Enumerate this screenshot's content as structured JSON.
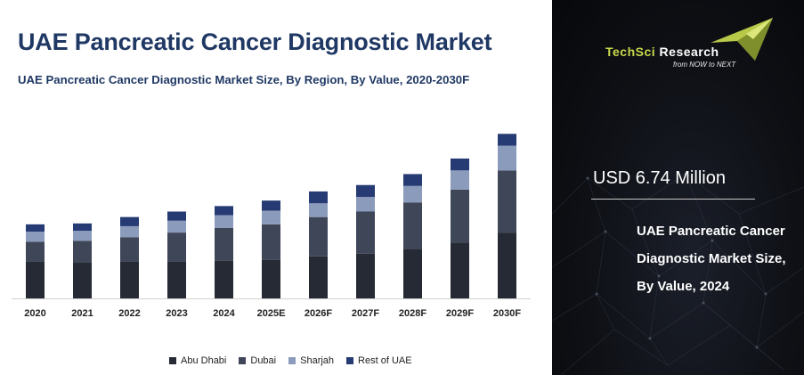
{
  "header": {
    "title": "UAE Pancreatic Cancer Diagnostic Market",
    "subtitle": "UAE Pancreatic Cancer Diagnostic Market Size, By Region, By Value, 2020-2030F"
  },
  "brand": {
    "name_part1": "TechSci",
    "name_part2": " Research",
    "tagline": "from NOW to NEXT"
  },
  "sidebar": {
    "value": "USD 6.74 Million",
    "description": "UAE Pancreatic Cancer Diagnostic Market Size, By Value, 2024"
  },
  "colors": {
    "abu_dhabi": "#252a34",
    "dubai": "#3e4657",
    "sharjah": "#8b9bbb",
    "rest_of_uae": "#263a73",
    "title": "#1f3864"
  },
  "chart_data": {
    "type": "bar",
    "stacked": true,
    "categories": [
      "2020",
      "2021",
      "2022",
      "2023",
      "2024",
      "2025E",
      "2026F",
      "2027F",
      "2028F",
      "2029F",
      "2030F"
    ],
    "series": [
      {
        "name": "Abu Dhabi",
        "values": [
          40,
          39,
          40,
          40,
          41,
          42,
          46,
          49,
          54,
          61,
          72
        ]
      },
      {
        "name": "Dubai",
        "values": [
          22,
          24,
          27,
          32,
          36,
          39,
          43,
          46,
          51,
          58,
          68
        ]
      },
      {
        "name": "Sharjah",
        "values": [
          11,
          11,
          12,
          13,
          14,
          15,
          15,
          16,
          18,
          21,
          27
        ]
      },
      {
        "name": "Rest of UAE",
        "values": [
          8,
          8,
          10,
          10,
          10,
          11,
          13,
          13,
          13,
          13,
          13
        ]
      }
    ],
    "legend": [
      "Abu Dhabi",
      "Dubai",
      "Sharjah",
      "Rest of UAE"
    ],
    "legend_position": "bottom",
    "ylim": [
      0,
      190
    ],
    "grid": false
  }
}
